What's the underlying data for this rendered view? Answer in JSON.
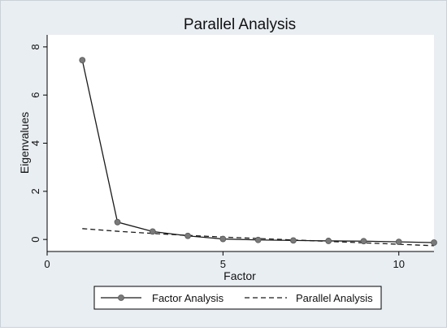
{
  "chart_data": {
    "type": "line",
    "title": "Parallel Analysis",
    "xlabel": "Factor",
    "ylabel": "Eigenvalues",
    "xlim": [
      0,
      11
    ],
    "ylim": [
      -0.5,
      8.5
    ],
    "xticks": [
      0,
      5,
      10
    ],
    "yticks": [
      0,
      2,
      4,
      6,
      8
    ],
    "grid": false,
    "legend_position": "bottom",
    "series": [
      {
        "name": "Factor Analysis",
        "style": "solid-markers",
        "color": "#1a1a1a",
        "marker_color": "#7a7a7a",
        "x": [
          1,
          2,
          3,
          4,
          5,
          6,
          7,
          8,
          9,
          10,
          11
        ],
        "y": [
          7.45,
          0.72,
          0.33,
          0.15,
          0.02,
          -0.02,
          -0.04,
          -0.06,
          -0.07,
          -0.1,
          -0.13
        ]
      },
      {
        "name": "Parallel Analysis",
        "style": "dashed",
        "color": "#1a1a1a",
        "x": [
          1,
          2,
          3,
          4,
          5,
          6,
          7,
          8,
          9,
          10,
          11
        ],
        "y": [
          0.45,
          0.34,
          0.25,
          0.17,
          0.1,
          0.04,
          -0.02,
          -0.08,
          -0.14,
          -0.2,
          -0.26
        ]
      }
    ]
  }
}
